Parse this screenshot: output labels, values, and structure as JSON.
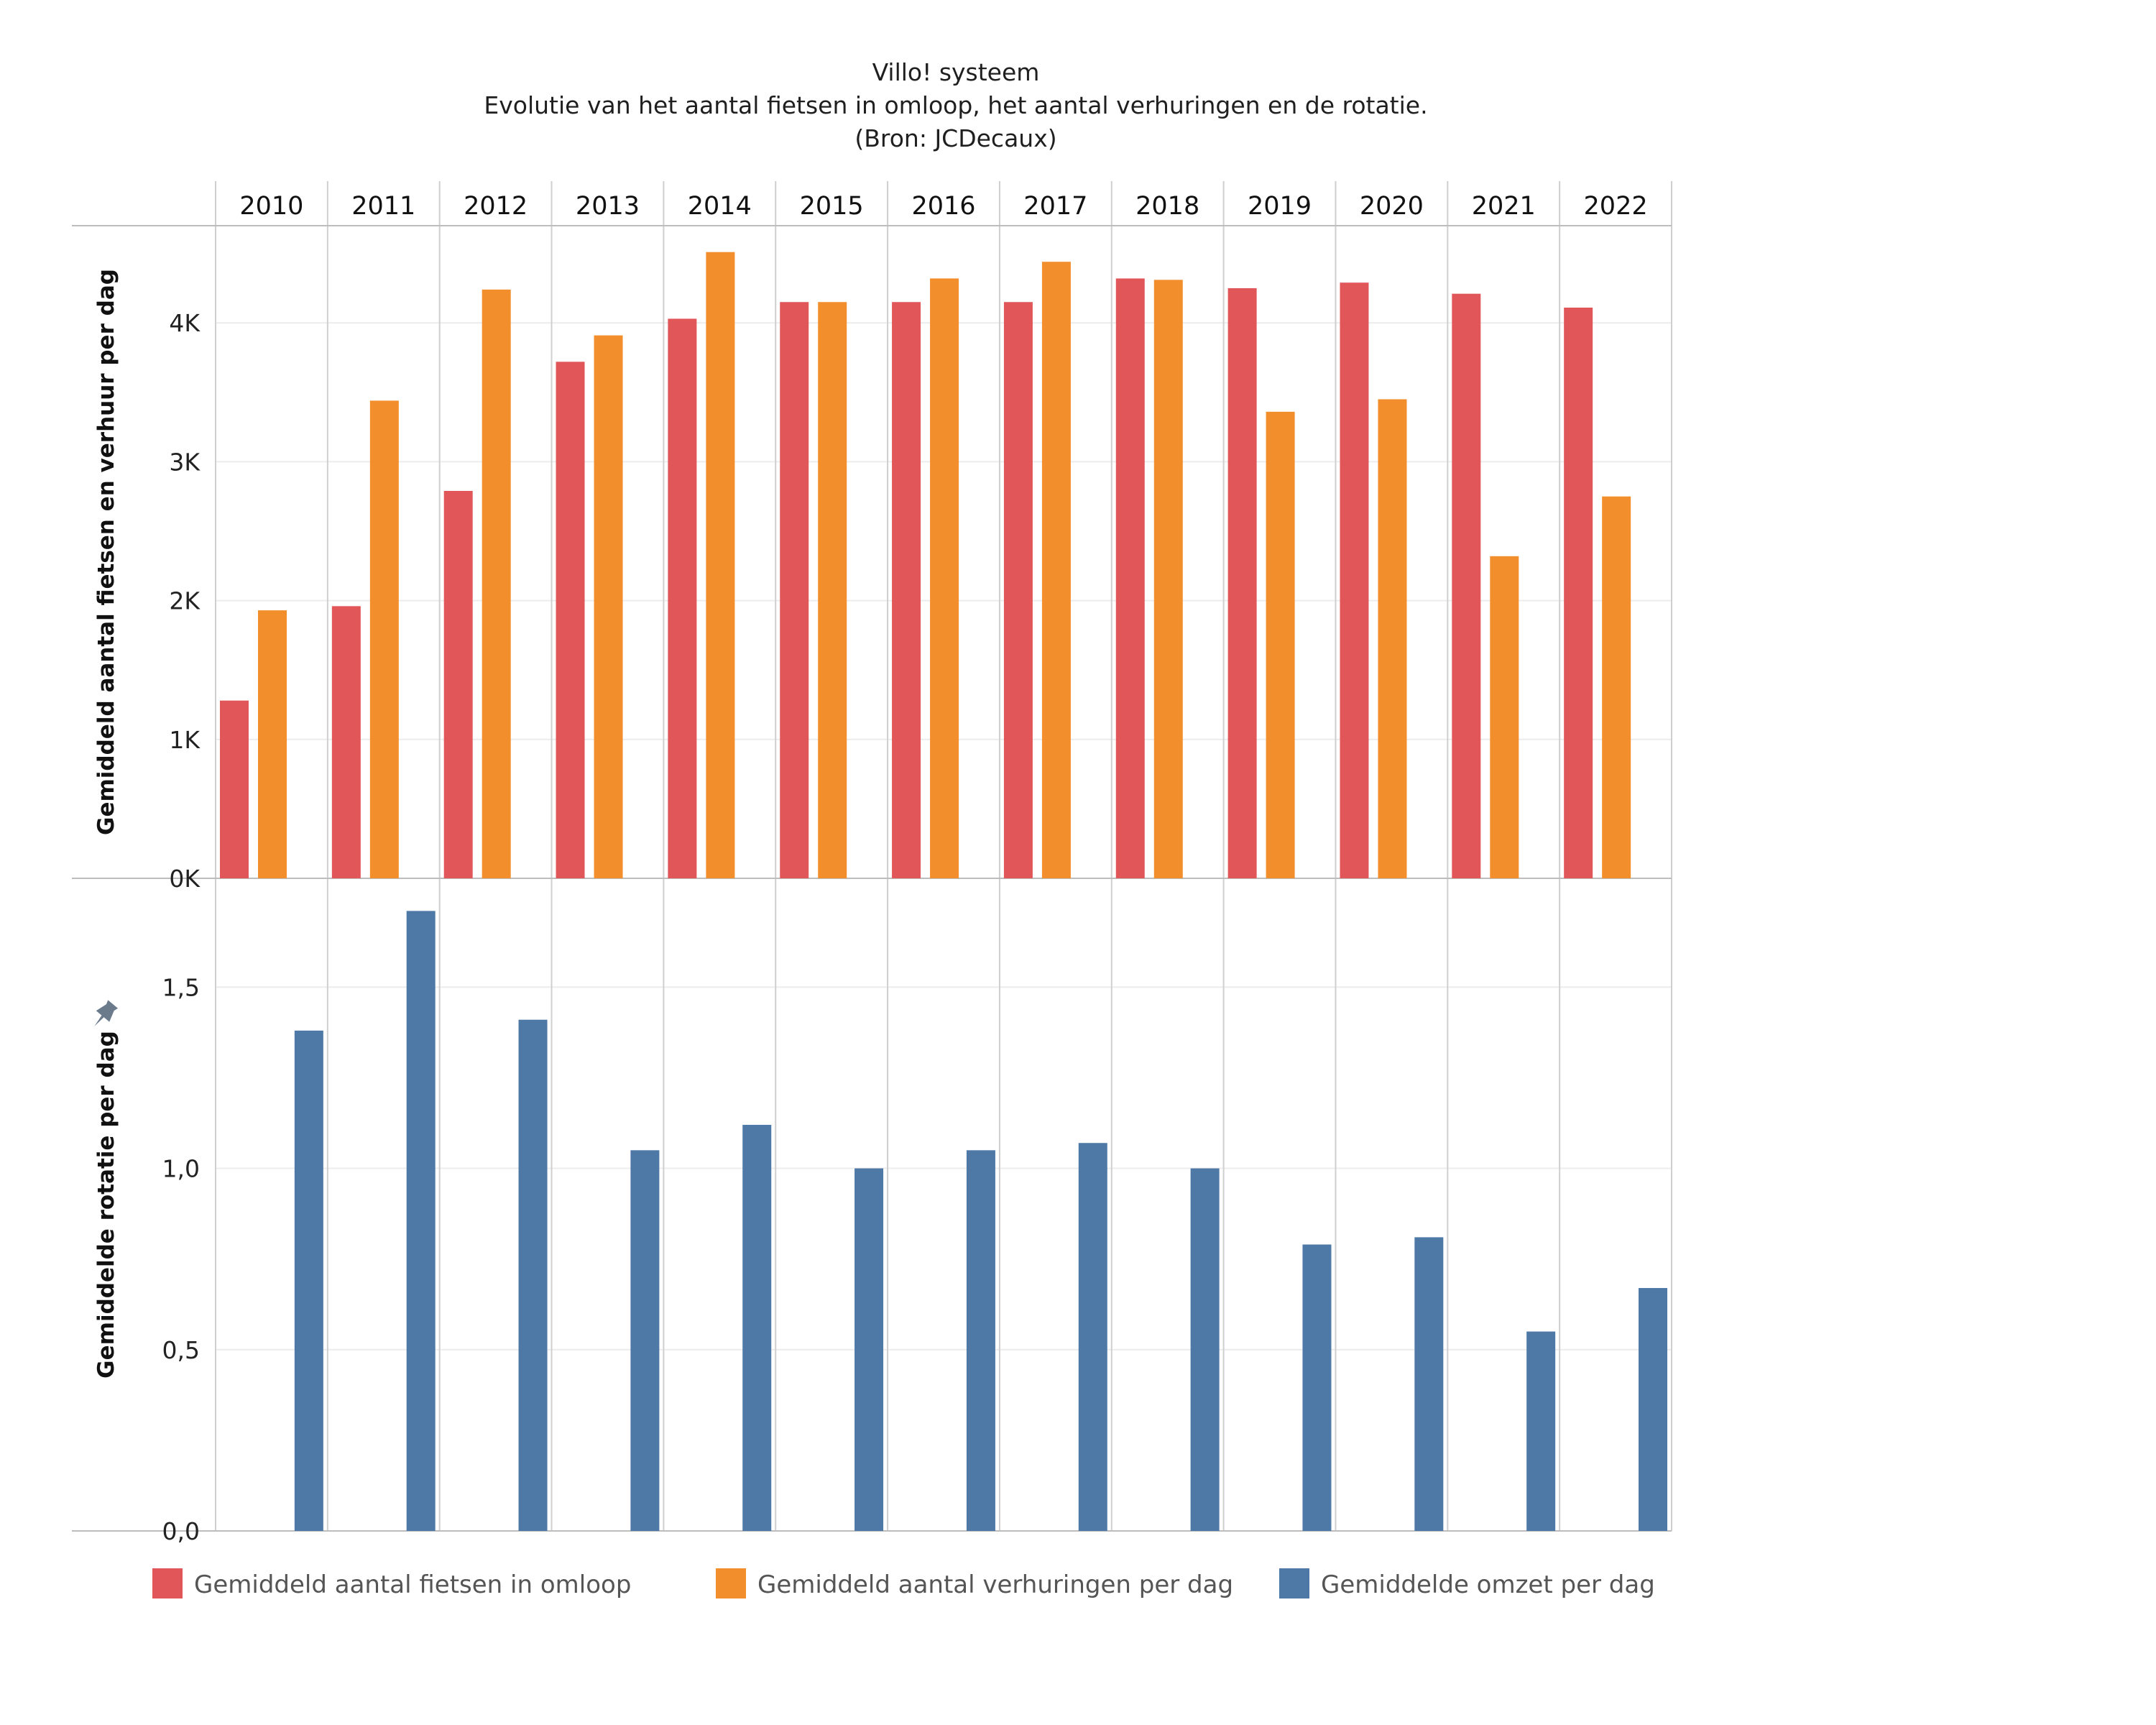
{
  "title": {
    "line1": "Villo! systeem",
    "line2": "Evolutie van het aantal fietsen in omloop, het aantal verhuringen en de rotatie.",
    "line3": "(Bron: JCDecaux)"
  },
  "chart_data": [
    {
      "type": "bar",
      "ylabel": "Gemiddeld aantal fietsen en verhuur per dag",
      "ylim": [
        0,
        4700
      ],
      "yticks": [
        0,
        1000,
        2000,
        3000,
        4000
      ],
      "ytick_labels": [
        "0K",
        "1K",
        "2K",
        "3K",
        "4K"
      ],
      "grid": true,
      "categories": [
        "2010",
        "2011",
        "2012",
        "2013",
        "2014",
        "2015",
        "2016",
        "2017",
        "2018",
        "2019",
        "2020",
        "2021",
        "2022"
      ],
      "series": [
        {
          "name": "Gemiddeld aantal fietsen in omloop",
          "color": "#e15759",
          "values": [
            1280,
            1960,
            2790,
            3720,
            4030,
            4150,
            4150,
            4150,
            4320,
            4250,
            4290,
            4210,
            4110
          ]
        },
        {
          "name": "Gemiddeld aantal verhuringen per dag",
          "color": "#f28e2b",
          "values": [
            1930,
            3440,
            4240,
            3910,
            4510,
            4150,
            4320,
            4440,
            4310,
            3360,
            3450,
            2320,
            2750
          ]
        }
      ]
    },
    {
      "type": "bar",
      "ylabel": "Gemiddelde rotatie per dag",
      "ylim": [
        0,
        1.8
      ],
      "yticks": [
        0,
        0.5,
        1.0,
        1.5
      ],
      "ytick_labels": [
        "0,0",
        "0,5",
        "1,0",
        "1,5"
      ],
      "grid": true,
      "categories": [
        "2010",
        "2011",
        "2012",
        "2013",
        "2014",
        "2015",
        "2016",
        "2017",
        "2018",
        "2019",
        "2020",
        "2021",
        "2022"
      ],
      "series": [
        {
          "name": "Gemiddelde omzet per dag",
          "color": "#4e79a7",
          "values": [
            1.38,
            1.71,
            1.41,
            1.05,
            1.12,
            1.0,
            1.05,
            1.07,
            1.0,
            0.79,
            0.81,
            0.55,
            0.67
          ]
        }
      ]
    }
  ],
  "legend": {
    "position": "bottom",
    "items": [
      {
        "label": "Gemiddeld aantal fietsen in omloop",
        "color": "#e15759"
      },
      {
        "label": "Gemiddeld aantal verhuringen per dag",
        "color": "#f28e2b"
      },
      {
        "label": "Gemiddelde omzet per dag",
        "color": "#4e79a7"
      }
    ]
  },
  "icons": {
    "pin": "pin-icon",
    "pin_color": "#6b7b8c"
  }
}
